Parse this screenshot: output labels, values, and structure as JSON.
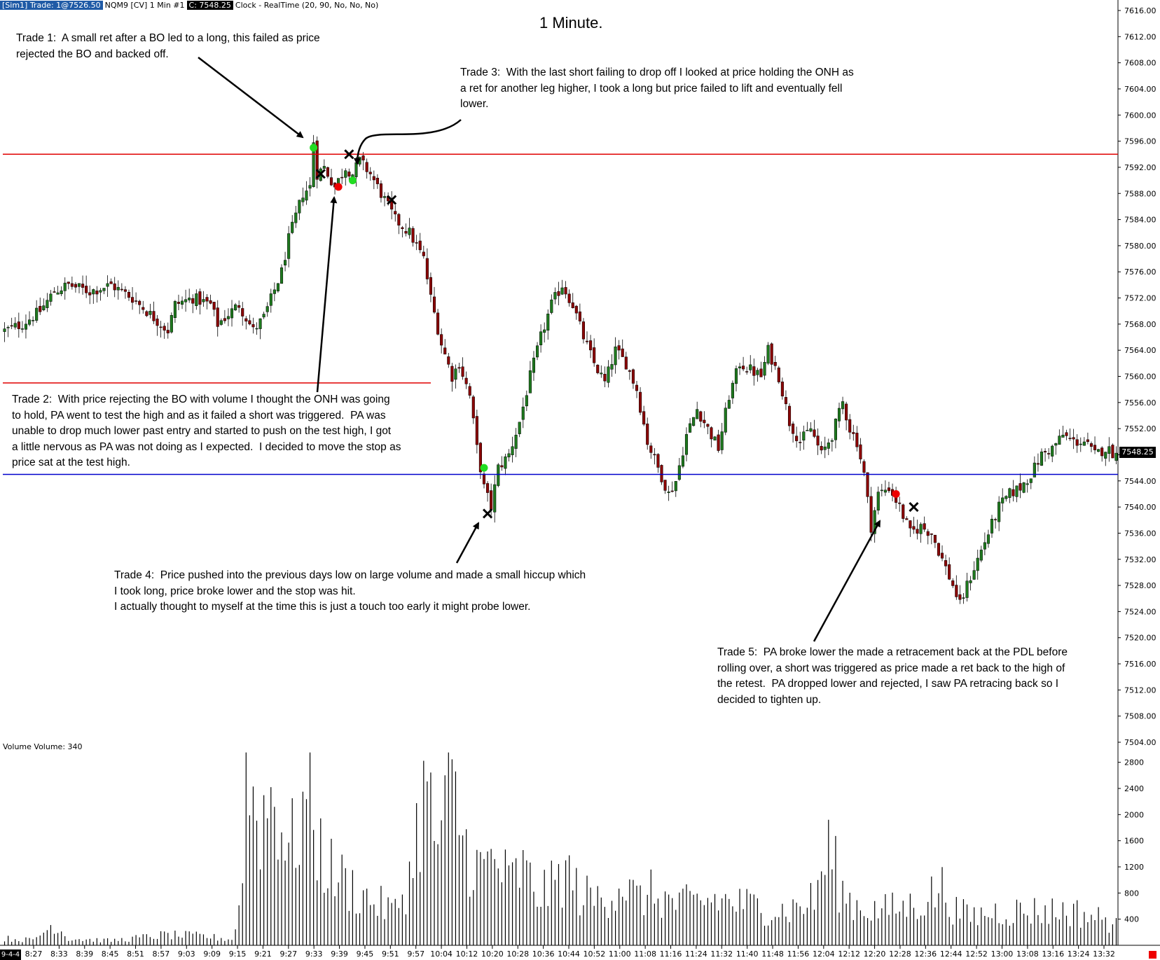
{
  "header": {
    "account": "[Sim1]  Trade: 1@7526.50",
    "instrument": "NQM9 [CV]  1 Min   #1",
    "last": "C: 7548.25",
    "rest": "Clock - RealTime   (20, 90, No, No, No)"
  },
  "chart_title": "1 Minute.",
  "last_price_label": "7548.25",
  "volume_label": "Volume  Volume: 340",
  "date_badge": "9-4-4",
  "annotations": {
    "trade1": "Trade 1:  A small ret after a BO led to a long, this failed as price\nrejected the BO and backed off.",
    "trade2": "Trade 2:  With price rejecting the BO with volume I thought the ONH was going\nto hold, PA went to test the high and as it failed a short was triggered.  PA was\nunable to drop much lower past entry and started to push on the test high, I got\na little nervous as PA was not doing as I expected.  I decided to move the stop as\nprice sat at the test high.",
    "trade3": "Trade 3:  With the last short failing to drop off I looked at price holding the ONH as\na ret for another leg higher, I took a long but price failed to lift and eventually fell\nlower.",
    "trade4": "Trade 4:  Price pushed into the previous days low on large volume and made a small hiccup which\nI took long, price broke lower and the stop was hit.\nI actually thought to myself at the time this is just a touch too early it might probe lower.",
    "trade5": "Trade 5:  PA broke lower the made a retracement back at the PDL before\nrolling over, a short was triggered as price made a ret back to the high of\nthe retest.  PA dropped lower and rejected, I saw PA retracing back so I\ndecided to tighten up."
  },
  "colors": {
    "up_candle": "#1e7a1e",
    "down_candle": "#8b0000",
    "onh_line": "#e00000",
    "pdl_line": "#0000cc",
    "long_entry": "#22dd22",
    "short_entry": "#ee0000"
  },
  "chart_data": [
    {
      "type": "candlestick",
      "title": "1 Minute.",
      "ylim": [
        7504,
        7616
      ],
      "y_ticks": [
        "7616.00",
        "7612.00",
        "7608.00",
        "7604.00",
        "7600.00",
        "7596.00",
        "7592.00",
        "7588.00",
        "7584.00",
        "7580.00",
        "7576.00",
        "7572.00",
        "7568.00",
        "7564.00",
        "7560.00",
        "7556.00",
        "7552.00",
        "7548.00",
        "7544.00",
        "7540.00",
        "7536.00",
        "7532.00",
        "7528.00",
        "7524.00",
        "7520.00",
        "7516.00",
        "7512.00",
        "7508.00",
        "7504.00"
      ],
      "x_ticks": [
        "8:27",
        "8:33",
        "8:39",
        "8:45",
        "8:51",
        "8:57",
        "9:03",
        "9:09",
        "9:15",
        "9:21",
        "9:27",
        "9:33",
        "9:39",
        "9:45",
        "9:51",
        "9:57",
        "10:04",
        "10:12",
        "10:20",
        "10:28",
        "10:36",
        "10:44",
        "10:52",
        "11:00",
        "11:08",
        "11:16",
        "11:24",
        "11:32",
        "11:40",
        "11:48",
        "11:56",
        "12:04",
        "12:12",
        "12:20",
        "12:28",
        "12:36",
        "12:44",
        "12:52",
        "13:00",
        "13:08",
        "13:16",
        "13:24",
        "13:32"
      ],
      "close_path": [
        [
          0,
          7567
        ],
        [
          5,
          7568
        ],
        [
          10,
          7570
        ],
        [
          14,
          7573
        ],
        [
          18,
          7574
        ],
        [
          24,
          7573
        ],
        [
          30,
          7574
        ],
        [
          36,
          7572
        ],
        [
          42,
          7569
        ],
        [
          46,
          7567
        ],
        [
          48,
          7571
        ],
        [
          53,
          7572
        ],
        [
          58,
          7571
        ],
        [
          60,
          7568
        ],
        [
          66,
          7571
        ],
        [
          70,
          7567
        ],
        [
          73,
          7569
        ],
        [
          78,
          7576
        ],
        [
          80,
          7581
        ],
        [
          84,
          7588
        ],
        [
          86,
          7589
        ],
        [
          87,
          7596
        ],
        [
          88,
          7591
        ],
        [
          90,
          7592
        ],
        [
          93,
          7589
        ],
        [
          96,
          7592
        ],
        [
          98,
          7591
        ],
        [
          100,
          7593
        ],
        [
          103,
          7591
        ],
        [
          106,
          7588
        ],
        [
          110,
          7584
        ],
        [
          114,
          7582
        ],
        [
          118,
          7578
        ],
        [
          120,
          7572
        ],
        [
          123,
          7565
        ],
        [
          126,
          7560
        ],
        [
          128,
          7562
        ],
        [
          131,
          7557
        ],
        [
          133,
          7549
        ],
        [
          135,
          7543
        ],
        [
          137,
          7540
        ],
        [
          139,
          7546
        ],
        [
          142,
          7548
        ],
        [
          145,
          7553
        ],
        [
          148,
          7560
        ],
        [
          151,
          7566
        ],
        [
          154,
          7571
        ],
        [
          157,
          7574
        ],
        [
          160,
          7571
        ],
        [
          163,
          7566
        ],
        [
          166,
          7562
        ],
        [
          169,
          7559
        ],
        [
          172,
          7564
        ],
        [
          175,
          7562
        ],
        [
          178,
          7558
        ],
        [
          181,
          7550
        ],
        [
          184,
          7546
        ],
        [
          187,
          7542
        ],
        [
          189,
          7544
        ],
        [
          192,
          7551
        ],
        [
          195,
          7555
        ],
        [
          198,
          7552
        ],
        [
          201,
          7549
        ],
        [
          204,
          7557
        ],
        [
          207,
          7562
        ],
        [
          210,
          7561
        ],
        [
          213,
          7560
        ],
        [
          215,
          7564
        ],
        [
          218,
          7560
        ],
        [
          221,
          7553
        ],
        [
          224,
          7550
        ],
        [
          227,
          7552
        ],
        [
          230,
          7548
        ],
        [
          233,
          7551
        ],
        [
          236,
          7556
        ],
        [
          238,
          7552
        ],
        [
          240,
          7550
        ],
        [
          242,
          7545
        ],
        [
          244,
          7537
        ],
        [
          246,
          7542
        ],
        [
          249,
          7543
        ],
        [
          252,
          7540
        ],
        [
          255,
          7536
        ],
        [
          258,
          7537
        ],
        [
          261,
          7536
        ],
        [
          264,
          7532
        ],
        [
          267,
          7528
        ],
        [
          269,
          7525
        ],
        [
          271,
          7528
        ],
        [
          274,
          7532
        ],
        [
          277,
          7536
        ],
        [
          280,
          7540
        ],
        [
          283,
          7542
        ],
        [
          286,
          7543
        ],
        [
          289,
          7545
        ],
        [
          292,
          7548
        ],
        [
          295,
          7549
        ],
        [
          298,
          7551
        ],
        [
          301,
          7550
        ],
        [
          304,
          7550
        ],
        [
          307,
          7548
        ],
        [
          310,
          7549
        ],
        [
          313,
          7548
        ]
      ],
      "volume_ylim": [
        0,
        3000
      ],
      "volume_ticks": [
        "2800",
        "2400",
        "2000",
        "1600",
        "1200",
        "800",
        "400"
      ],
      "volume_levels": [
        [
          0,
          120
        ],
        [
          8,
          90
        ],
        [
          14,
          380
        ],
        [
          18,
          120
        ],
        [
          30,
          80
        ],
        [
          45,
          180
        ],
        [
          56,
          160
        ],
        [
          64,
          100
        ],
        [
          66,
          600
        ],
        [
          68,
          2900
        ],
        [
          72,
          2200
        ],
        [
          76,
          2700
        ],
        [
          80,
          1600
        ],
        [
          84,
          2300
        ],
        [
          86,
          2900
        ],
        [
          88,
          1800
        ],
        [
          92,
          1300
        ],
        [
          96,
          1100
        ],
        [
          100,
          900
        ],
        [
          106,
          700
        ],
        [
          110,
          600
        ],
        [
          114,
          1200
        ],
        [
          118,
          2700
        ],
        [
          122,
          1800
        ],
        [
          126,
          2700
        ],
        [
          130,
          1700
        ],
        [
          134,
          1300
        ],
        [
          138,
          1500
        ],
        [
          142,
          1100
        ],
        [
          146,
          1300
        ],
        [
          150,
          900
        ],
        [
          154,
          1000
        ],
        [
          158,
          1300
        ],
        [
          162,
          900
        ],
        [
          166,
          800
        ],
        [
          170,
          900
        ],
        [
          174,
          1100
        ],
        [
          178,
          800
        ],
        [
          182,
          900
        ],
        [
          190,
          700
        ],
        [
          200,
          800
        ],
        [
          210,
          700
        ],
        [
          220,
          600
        ],
        [
          228,
          800
        ],
        [
          232,
          1700
        ],
        [
          236,
          900
        ],
        [
          240,
          700
        ],
        [
          246,
          600
        ],
        [
          256,
          700
        ],
        [
          264,
          1000
        ],
        [
          268,
          600
        ],
        [
          272,
          500
        ],
        [
          280,
          600
        ],
        [
          290,
          600
        ],
        [
          300,
          600
        ],
        [
          310,
          450
        ],
        [
          313,
          350
        ]
      ],
      "pdh_onh_level": 7594,
      "pdl_level": 7545,
      "markers": [
        {
          "type": "long_entry",
          "x": 87,
          "y": 7595
        },
        {
          "type": "exit",
          "x": 89,
          "y": 7591
        },
        {
          "type": "short_entry",
          "x": 94,
          "y": 7589
        },
        {
          "type": "exit",
          "x": 97,
          "y": 7594
        },
        {
          "type": "long_entry",
          "x": 98,
          "y": 7590
        },
        {
          "type": "exit",
          "x": 109,
          "y": 7587
        },
        {
          "type": "long_entry",
          "x": 135,
          "y": 7546
        },
        {
          "type": "exit",
          "x": 136,
          "y": 7539
        },
        {
          "type": "short_entry",
          "x": 251,
          "y": 7542
        },
        {
          "type": "exit",
          "x": 256,
          "y": 7540
        }
      ]
    }
  ]
}
